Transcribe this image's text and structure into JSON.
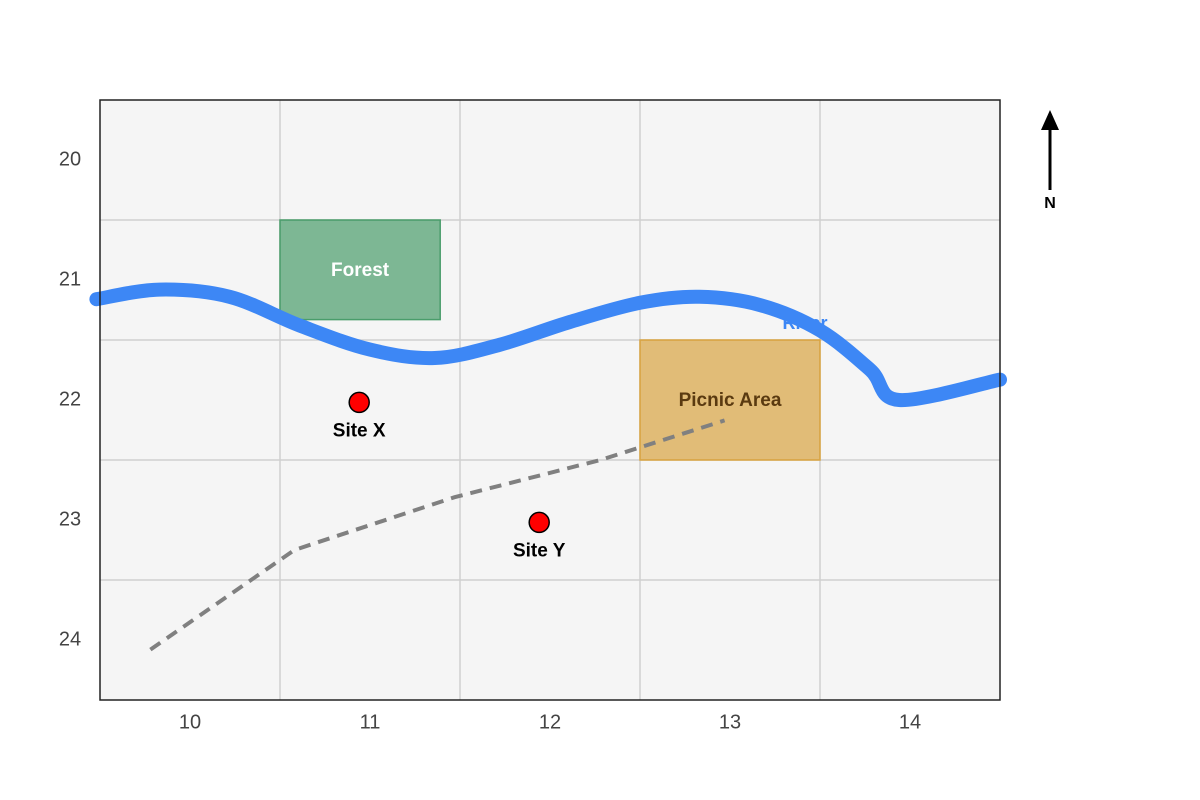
{
  "chart_data": {
    "type": "map",
    "xlim": [
      9.5,
      14.5
    ],
    "ylim": [
      19.5,
      24.5
    ],
    "xticks": [
      10,
      11,
      12,
      13,
      14
    ],
    "yticks": [
      20,
      21,
      22,
      23,
      24
    ],
    "grid": true,
    "north_label": "N",
    "zones": [
      {
        "name": "Forest",
        "color": "#4a9d6b",
        "x": [
          10.5,
          11.39
        ],
        "y": [
          20.5,
          21.33
        ]
      },
      {
        "name": "Picnic Area",
        "color": "#d9a441",
        "x": [
          12.5,
          13.5
        ],
        "y": [
          21.5,
          22.5
        ]
      }
    ],
    "river": {
      "name": "River",
      "color": "#3d87f5",
      "x": [
        9.48,
        9.83,
        10.22,
        10.61,
        11,
        11.36,
        11.72,
        12.11,
        12.5,
        12.83,
        13.17,
        13.5,
        13.78,
        13.94,
        14.5
      ],
      "y": [
        21.16,
        21.08,
        21.14,
        21.38,
        21.58,
        21.65,
        21.54,
        21.35,
        21.19,
        21.14,
        21.21,
        21.42,
        21.75,
        22,
        21.83
      ]
    },
    "trail": {
      "color": "#808080",
      "x": [
        9.78,
        10.58,
        11.47,
        12.28,
        12.97
      ],
      "y": [
        24.08,
        23.25,
        22.81,
        22.5,
        22.17
      ]
    },
    "sites": [
      {
        "name": "Site X",
        "color": "#ff0000",
        "x": 10.94,
        "y": 22.02
      },
      {
        "name": "Site Y",
        "color": "#ff0000",
        "x": 11.94,
        "y": 23.02
      }
    ]
  }
}
